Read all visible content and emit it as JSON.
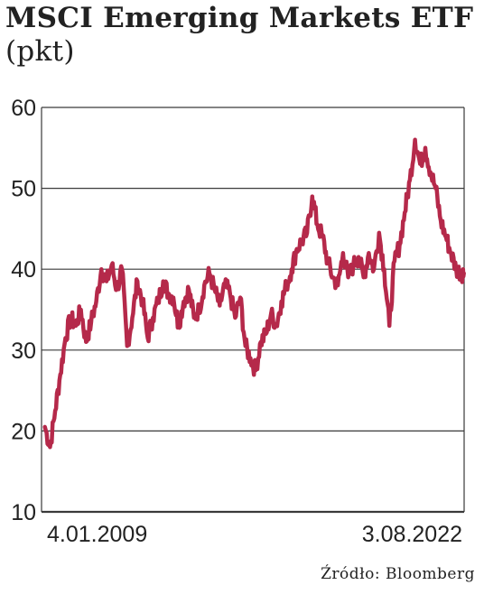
{
  "title_main": "MSCI Emerging Markets ETF",
  "title_unit": "(pkt)",
  "source": "Źródło: Bloomberg",
  "colors": {
    "line": "#b5294a",
    "grid": "#3a3a3a",
    "text": "#222222"
  },
  "chart_data": {
    "type": "line",
    "xlabel": "",
    "ylabel": "",
    "ylim": [
      10,
      60
    ],
    "yticks": [
      10,
      20,
      30,
      40,
      50,
      60
    ],
    "grid": true,
    "x_start_label": "4.01.2009",
    "x_end_label": "3.08.2022",
    "x": [
      "2009-01",
      "2009-03",
      "2009-05",
      "2009-07",
      "2009-09",
      "2009-11",
      "2010-01",
      "2010-03",
      "2010-05",
      "2010-07",
      "2010-09",
      "2010-11",
      "2011-01",
      "2011-03",
      "2011-05",
      "2011-07",
      "2011-09",
      "2011-11",
      "2012-01",
      "2012-03",
      "2012-05",
      "2012-07",
      "2012-09",
      "2012-11",
      "2013-01",
      "2013-03",
      "2013-05",
      "2013-07",
      "2013-09",
      "2013-11",
      "2014-01",
      "2014-03",
      "2014-05",
      "2014-07",
      "2014-09",
      "2014-11",
      "2015-01",
      "2015-03",
      "2015-05",
      "2015-07",
      "2015-09",
      "2015-11",
      "2016-01",
      "2016-03",
      "2016-05",
      "2016-07",
      "2016-09",
      "2016-11",
      "2017-01",
      "2017-03",
      "2017-05",
      "2017-07",
      "2017-09",
      "2017-11",
      "2018-01",
      "2018-03",
      "2018-05",
      "2018-07",
      "2018-09",
      "2018-11",
      "2019-01",
      "2019-03",
      "2019-05",
      "2019-07",
      "2019-09",
      "2019-11",
      "2020-01",
      "2020-03",
      "2020-05",
      "2020-07",
      "2020-09",
      "2020-11",
      "2021-01",
      "2021-03",
      "2021-05",
      "2021-07",
      "2021-09",
      "2021-11",
      "2022-01",
      "2022-03",
      "2022-05",
      "2022-07",
      "2022-08"
    ],
    "series": [
      {
        "values": [
          20.5,
          18,
          22.5,
          27,
          31.5,
          34,
          33,
          35,
          31,
          33.5,
          36,
          40,
          38.5,
          40.5,
          37.5,
          40,
          30.5,
          34,
          38.5,
          36,
          31.5,
          34,
          36,
          38.5,
          37,
          36.5,
          33,
          36,
          37.5,
          34,
          35,
          38,
          39.5,
          37.5,
          35.5,
          38,
          37,
          34,
          36.5,
          30.5,
          29,
          27.5,
          31,
          32,
          34.5,
          33,
          36,
          38,
          40,
          42.5,
          43.5,
          44.5,
          49,
          45.5,
          44,
          41,
          39,
          38,
          42,
          39,
          40.5,
          41.5,
          39,
          42,
          40,
          44.5,
          40,
          33,
          41,
          43,
          47,
          51,
          56,
          53,
          55,
          52,
          50,
          46,
          44,
          42,
          40,
          39.5,
          39.5
        ]
      }
    ]
  }
}
